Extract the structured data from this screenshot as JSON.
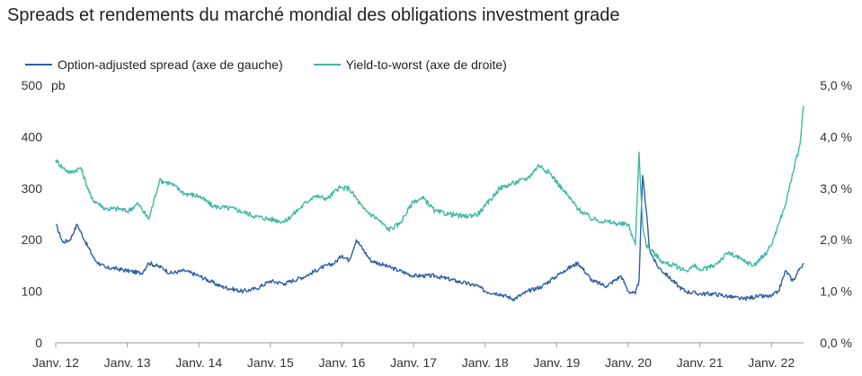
{
  "chart_data": {
    "type": "line",
    "title": "Spreads et rendements du marché mondial des obligations investment grade",
    "left_axis": {
      "unit": "pb",
      "ticks": [
        "0",
        "100",
        "200",
        "300",
        "400",
        "500"
      ],
      "min": 0,
      "max": 500
    },
    "right_axis": {
      "ticks": [
        "0,0 %",
        "1,0 %",
        "2,0 %",
        "3,0 %",
        "4,0 %",
        "5,0 %"
      ],
      "min": 0,
      "max": 5
    },
    "x_ticks": [
      "Janv. 12",
      "Janv. 13",
      "Janv. 14",
      "Janv. 15",
      "Janv. 16",
      "Janv. 17",
      "Janv. 18",
      "Janv. 19",
      "Janv. 20",
      "Janv. 21",
      "Janv. 22"
    ],
    "x_range": [
      2012.0,
      2022.45
    ],
    "grid": false,
    "legend_position": "top-left",
    "series": [
      {
        "name": "Option-adjusted spread (axe de gauche)",
        "axis": "left",
        "color": "#2E5FA3",
        "x": [
          2012.0,
          2012.1,
          2012.2,
          2012.3,
          2012.4,
          2012.55,
          2012.7,
          2012.8,
          2013.0,
          2013.2,
          2013.3,
          2013.5,
          2013.6,
          2013.8,
          2014.0,
          2014.3,
          2014.6,
          2014.8,
          2015.0,
          2015.2,
          2015.5,
          2015.7,
          2015.9,
          2016.0,
          2016.1,
          2016.2,
          2016.4,
          2016.6,
          2016.8,
          2017.0,
          2017.3,
          2017.6,
          2017.9,
          2018.0,
          2018.2,
          2018.4,
          2018.6,
          2018.8,
          2018.95,
          2019.1,
          2019.3,
          2019.5,
          2019.7,
          2019.9,
          2020.0,
          2020.1,
          2020.15,
          2020.2,
          2020.25,
          2020.3,
          2020.4,
          2020.55,
          2020.7,
          2020.8,
          2021.0,
          2021.2,
          2021.4,
          2021.6,
          2021.8,
          2022.0,
          2022.1,
          2022.2,
          2022.3,
          2022.4,
          2022.45
        ],
        "values": [
          230,
          195,
          200,
          230,
          200,
          160,
          145,
          145,
          140,
          135,
          155,
          145,
          135,
          140,
          130,
          110,
          100,
          105,
          120,
          115,
          130,
          145,
          155,
          170,
          160,
          200,
          160,
          150,
          140,
          130,
          130,
          120,
          110,
          100,
          95,
          85,
          100,
          110,
          125,
          140,
          155,
          120,
          110,
          130,
          100,
          95,
          120,
          325,
          260,
          180,
          150,
          130,
          110,
          100,
          95,
          95,
          90,
          85,
          90,
          90,
          100,
          140,
          120,
          145,
          155
        ],
        "range": "2012.0–2022.45"
      },
      {
        "name": "Yield-to-worst (axe de droite)",
        "axis": "right",
        "color": "#3FB8A4",
        "x": [
          2012.0,
          2012.1,
          2012.2,
          2012.35,
          2012.5,
          2012.7,
          2012.9,
          2013.0,
          2013.15,
          2013.3,
          2013.45,
          2013.6,
          2013.8,
          2014.0,
          2014.2,
          2014.5,
          2014.8,
          2015.0,
          2015.2,
          2015.4,
          2015.6,
          2015.8,
          2015.95,
          2016.1,
          2016.3,
          2016.5,
          2016.65,
          2016.8,
          2017.0,
          2017.15,
          2017.3,
          2017.5,
          2017.7,
          2017.9,
          2018.0,
          2018.2,
          2018.4,
          2018.6,
          2018.75,
          2018.9,
          2019.1,
          2019.3,
          2019.5,
          2019.7,
          2019.9,
          2020.0,
          2020.1,
          2020.15,
          2020.2,
          2020.25,
          2020.35,
          2020.5,
          2020.65,
          2020.8,
          2020.95,
          2021.0,
          2021.2,
          2021.4,
          2021.6,
          2021.75,
          2021.9,
          2022.0,
          2022.1,
          2022.2,
          2022.3,
          2022.4,
          2022.45
        ],
        "values": [
          3.55,
          3.4,
          3.3,
          3.4,
          2.8,
          2.6,
          2.6,
          2.55,
          2.7,
          2.4,
          3.15,
          3.1,
          2.9,
          2.85,
          2.65,
          2.6,
          2.45,
          2.4,
          2.35,
          2.6,
          2.85,
          2.8,
          3.0,
          3.0,
          2.6,
          2.4,
          2.2,
          2.3,
          2.75,
          2.8,
          2.55,
          2.5,
          2.45,
          2.5,
          2.65,
          3.0,
          3.1,
          3.2,
          3.45,
          3.3,
          2.95,
          2.6,
          2.4,
          2.35,
          2.3,
          2.3,
          1.9,
          3.7,
          2.3,
          1.9,
          1.75,
          1.55,
          1.5,
          1.4,
          1.5,
          1.4,
          1.5,
          1.75,
          1.6,
          1.5,
          1.7,
          1.9,
          2.3,
          2.7,
          3.3,
          3.85,
          4.6
        ],
        "range": "2012.0–2022.45"
      }
    ]
  }
}
